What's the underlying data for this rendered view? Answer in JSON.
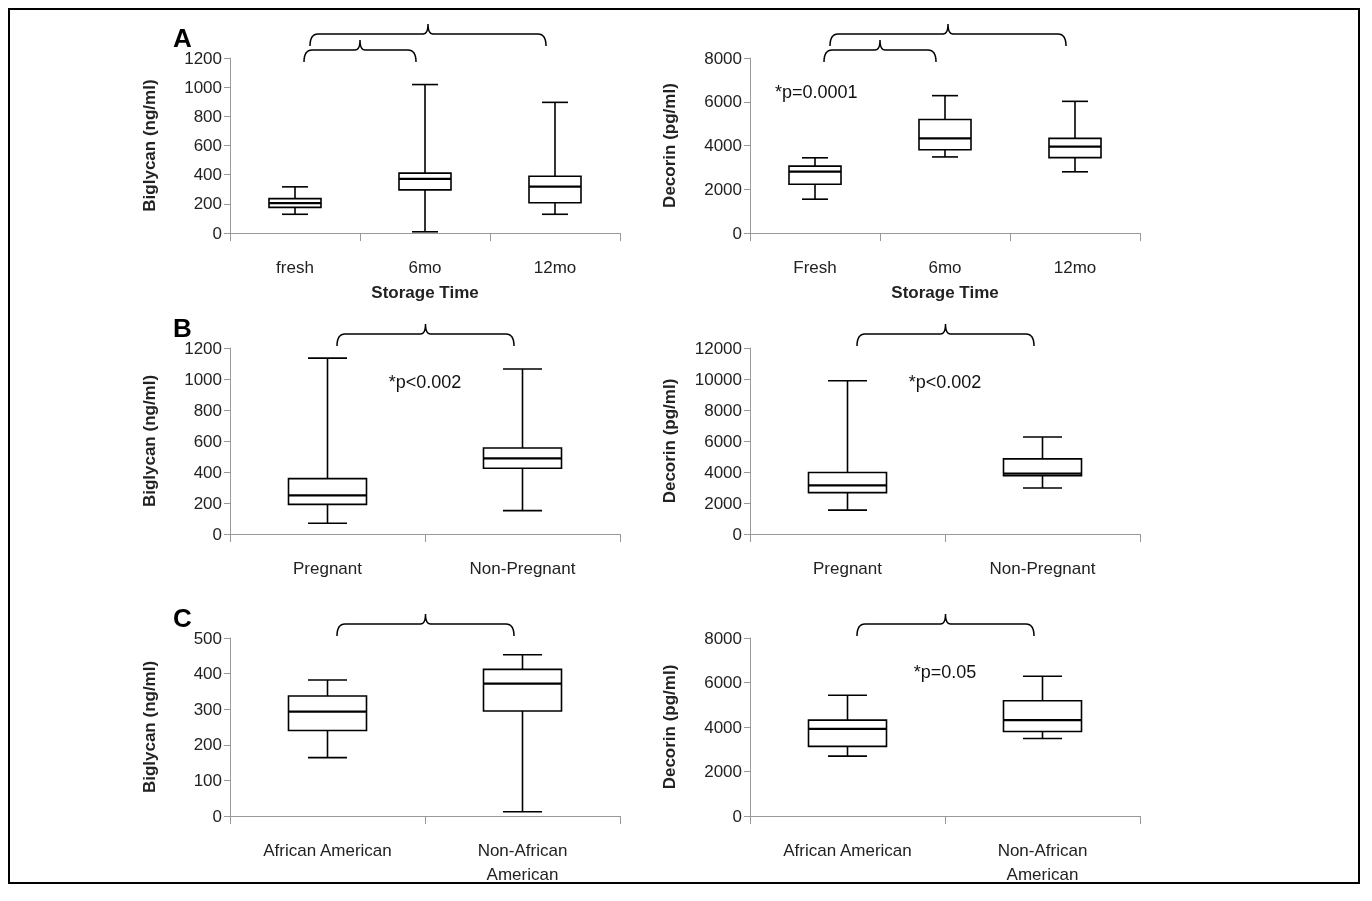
{
  "chart_data": [
    {
      "type": "box",
      "title": "A",
      "ylabel": "Biglycan (ng/ml)",
      "xlabel": "Storage Time",
      "categories": [
        "fresh",
        "6mo",
        "12mo"
      ],
      "ylim": [
        0,
        1200
      ],
      "yticks": [
        0,
        200,
        400,
        600,
        800,
        1000,
        1200
      ],
      "color": "#000000",
      "boxes": [
        {
          "low": 129,
          "q1": 176,
          "median": 206,
          "q3": 236,
          "high": 317
        },
        {
          "low": 9,
          "q1": 296,
          "median": 371,
          "q3": 411,
          "high": 1018
        },
        {
          "low": 129,
          "q1": 208,
          "median": 319,
          "q3": 390,
          "high": 896
        }
      ]
    },
    {
      "type": "box",
      "ylabel": "Decorin (pg/ml)",
      "xlabel": "Storage Time",
      "categories": [
        "Fresh",
        "6mo",
        "12mo"
      ],
      "ylim": [
        0,
        8000
      ],
      "yticks": [
        0,
        2000,
        4000,
        6000,
        8000
      ],
      "color": "#000000",
      "annotations": [
        "*p=0.0001"
      ],
      "boxes": [
        {
          "low": 1550,
          "q1": 2230,
          "median": 2810,
          "q3": 3060,
          "high": 3440
        },
        {
          "low": 3480,
          "q1": 3810,
          "median": 4330,
          "q3": 5190,
          "high": 6280
        },
        {
          "low": 2800,
          "q1": 3450,
          "median": 3950,
          "q3": 4330,
          "high": 6020
        }
      ]
    },
    {
      "type": "box",
      "title": "B",
      "ylabel": "Biglycan (ng/ml)",
      "categories": [
        "Pregnant",
        "Non-Pregnant"
      ],
      "ylim": [
        0,
        1200
      ],
      "yticks": [
        0,
        200,
        400,
        600,
        800,
        1000,
        1200
      ],
      "color": "#000000",
      "annotations": [
        "*p<0.002"
      ],
      "boxes": [
        {
          "low": 69,
          "q1": 191,
          "median": 249,
          "q3": 357,
          "high": 1135
        },
        {
          "low": 151,
          "q1": 424,
          "median": 488,
          "q3": 555,
          "high": 1065
        }
      ]
    },
    {
      "type": "box",
      "ylabel": "Decorin (pg/ml)",
      "categories": [
        "Pregnant",
        "Non-Pregnant"
      ],
      "ylim": [
        0,
        12000
      ],
      "yticks": [
        0,
        2000,
        4000,
        6000,
        8000,
        10000,
        12000
      ],
      "color": "#000000",
      "annotations": [
        "*p<0.002"
      ],
      "boxes": [
        {
          "low": 1540,
          "q1": 2670,
          "median": 3140,
          "q3": 3970,
          "high": 9890
        },
        {
          "low": 2970,
          "q1": 3760,
          "median": 3890,
          "q3": 4850,
          "high": 6260
        }
      ]
    },
    {
      "type": "box",
      "title": "C",
      "ylabel": "Biglycan (ng/ml)",
      "categories": [
        "African American",
        "Non-African\nAmerican"
      ],
      "ylim": [
        0,
        500
      ],
      "yticks": [
        0,
        100,
        200,
        300,
        400,
        500
      ],
      "color": "#000000",
      "boxes": [
        {
          "low": 164,
          "q1": 240,
          "median": 293,
          "q3": 337,
          "high": 382
        },
        {
          "low": 12,
          "q1": 295,
          "median": 372,
          "q3": 412,
          "high": 453
        }
      ]
    },
    {
      "type": "box",
      "ylabel": "Decorin (pg/ml)",
      "categories": [
        "African American",
        "Non-African\nAmerican"
      ],
      "ylim": [
        0,
        8000
      ],
      "yticks": [
        0,
        2000,
        4000,
        6000,
        8000
      ],
      "color": "#000000",
      "annotations": [
        "*p=0.05"
      ],
      "boxes": [
        {
          "low": 2690,
          "q1": 3130,
          "median": 3920,
          "q3": 4310,
          "high": 5430
        },
        {
          "low": 3480,
          "q1": 3800,
          "median": 4310,
          "q3": 5180,
          "high": 6280
        }
      ]
    }
  ]
}
